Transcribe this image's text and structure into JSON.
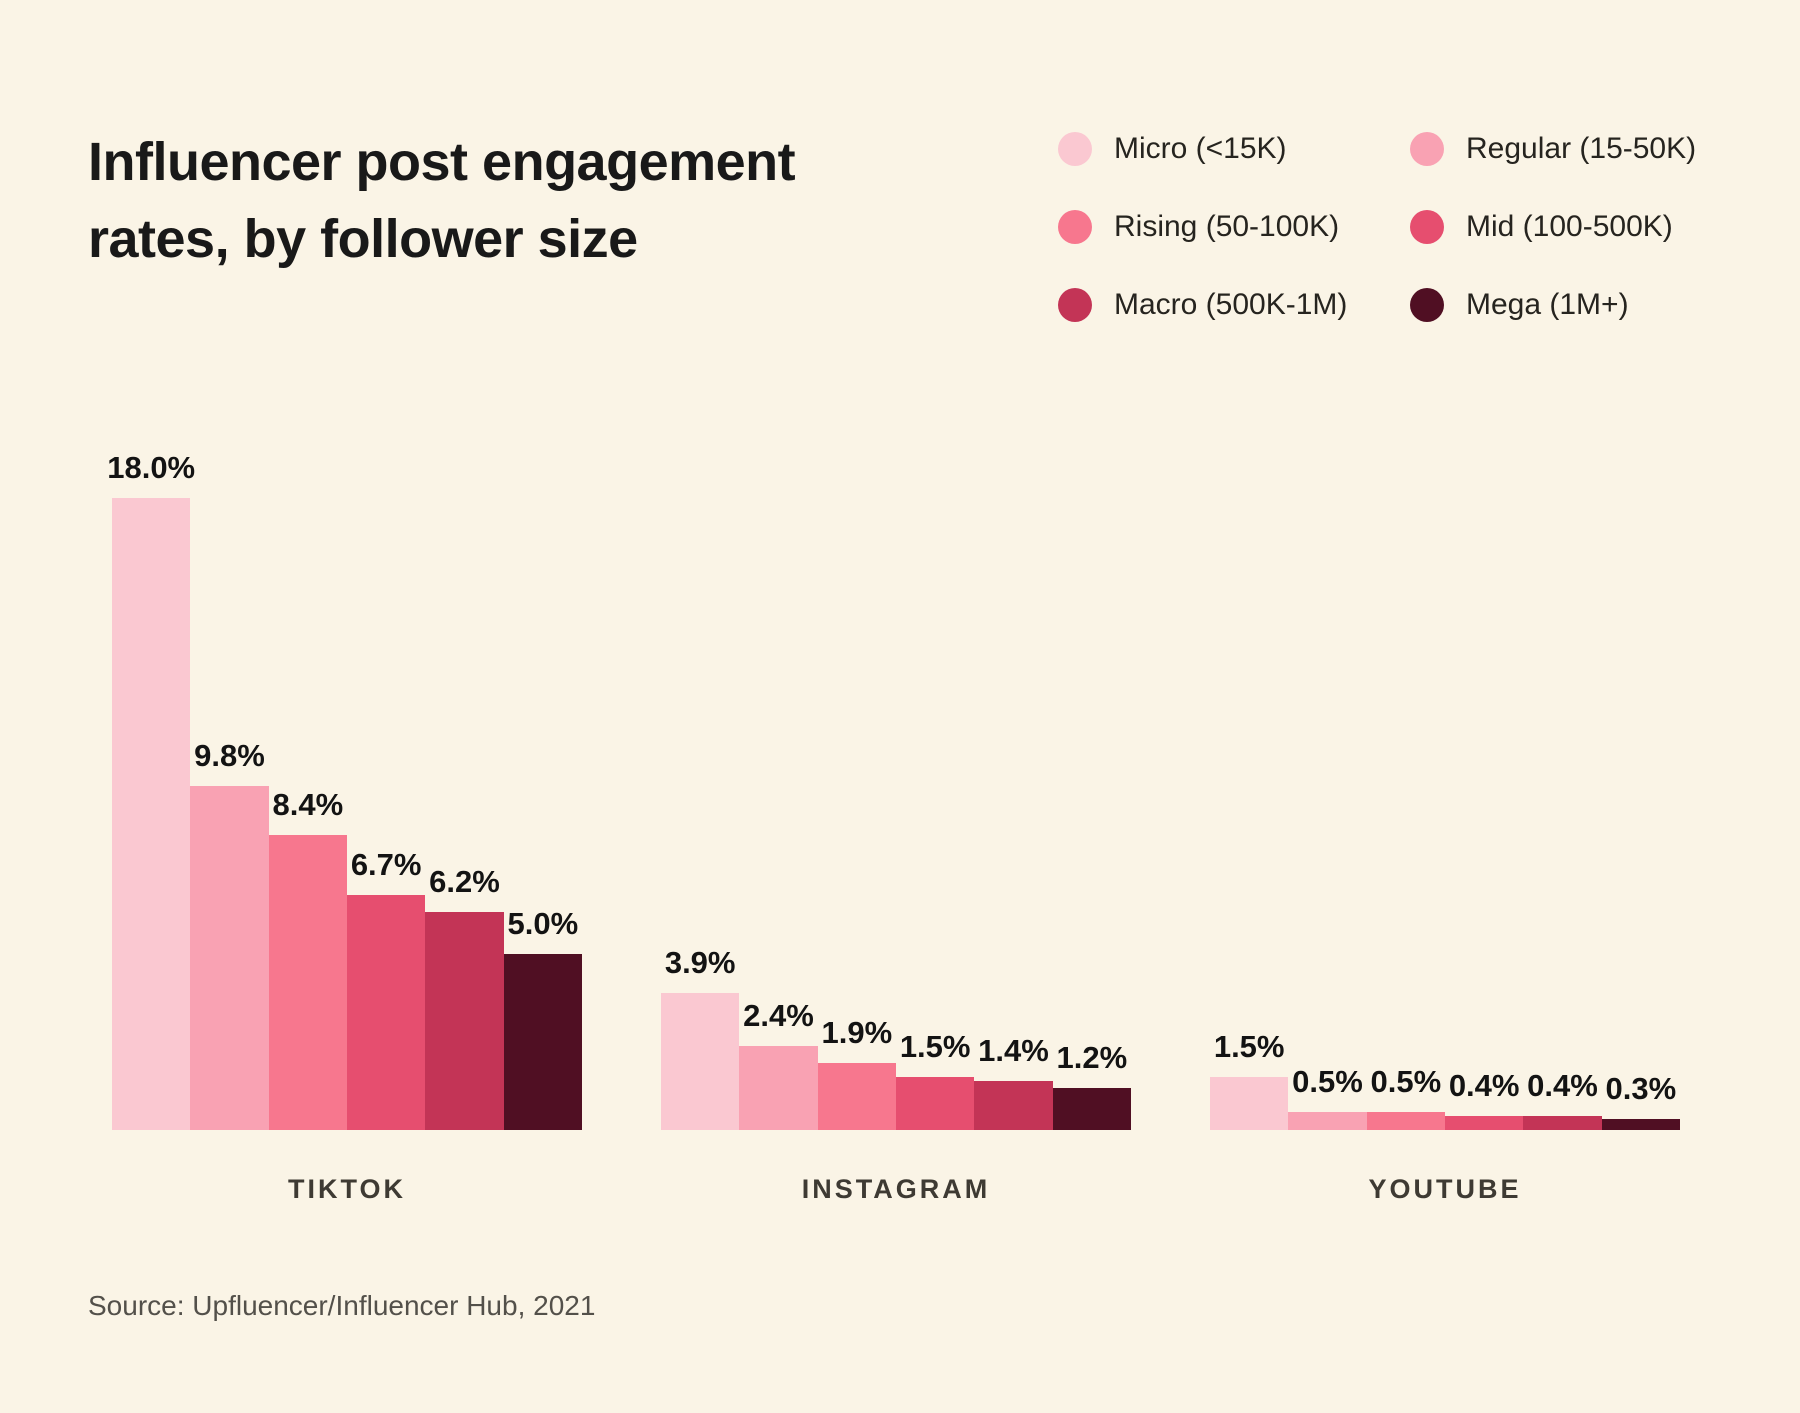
{
  "title": "Influencer post engagement rates, by follower size",
  "title_lines": [
    "Influencer post engagement",
    "rates, by follower size"
  ],
  "legend": [
    {
      "label": "Micro (<15K)",
      "color": "#fac8d1"
    },
    {
      "label": "Regular (15-50K)",
      "color": "#f9a2b3"
    },
    {
      "label": "Rising (50-100K)",
      "color": "#f7778e"
    },
    {
      "label": "Mid (100-500K)",
      "color": "#e64e6f"
    },
    {
      "label": "Macro (500K-1M)",
      "color": "#c33456"
    },
    {
      "label": "Mega (1M+)",
      "color": "#500f23"
    }
  ],
  "source": "Source: Upfluencer/Influencer Hub, 2021",
  "chart_data": {
    "type": "bar",
    "title": "Influencer post engagement rates, by follower size",
    "categories": [
      "TIKTOK",
      "INSTAGRAM",
      "YOUTUBE"
    ],
    "tiers": [
      "Micro (<15K)",
      "Regular (15-50K)",
      "Rising (50-100K)",
      "Mid (100-500K)",
      "Macro (500K-1M)",
      "Mega (1M+)"
    ],
    "series": [
      {
        "platform": "TIKTOK",
        "values": [
          18.0,
          9.8,
          8.4,
          6.7,
          6.2,
          5.0
        ],
        "labels": [
          "18.0%",
          "9.8%",
          "8.4%",
          "6.7%",
          "6.2%",
          "5.0%"
        ]
      },
      {
        "platform": "INSTAGRAM",
        "values": [
          3.9,
          2.4,
          1.9,
          1.5,
          1.4,
          1.2
        ],
        "labels": [
          "3.9%",
          "2.4%",
          "1.9%",
          "1.5%",
          "1.4%",
          "1.2%"
        ]
      },
      {
        "platform": "YOUTUBE",
        "values": [
          1.5,
          0.5,
          0.5,
          0.4,
          0.4,
          0.3
        ],
        "labels": [
          "1.5%",
          "0.5%",
          "0.5%",
          "0.4%",
          "0.4%",
          "0.3%"
        ]
      }
    ],
    "tier_colors": [
      "#fac8d1",
      "#f9a2b3",
      "#f7778e",
      "#e64e6f",
      "#c33456",
      "#500f23"
    ],
    "unit": "percent",
    "value_labels_shown": true,
    "max_value": 18.0,
    "ylim": [
      0,
      18
    ],
    "grid": false,
    "axes_hidden": true,
    "legend_position": "top-right"
  },
  "colors": {
    "background": "#faf4e6",
    "title_text": "#191919",
    "value_label_text": "#131313",
    "axis_label_text": "#3e3a33",
    "source_text": "#53504a"
  }
}
